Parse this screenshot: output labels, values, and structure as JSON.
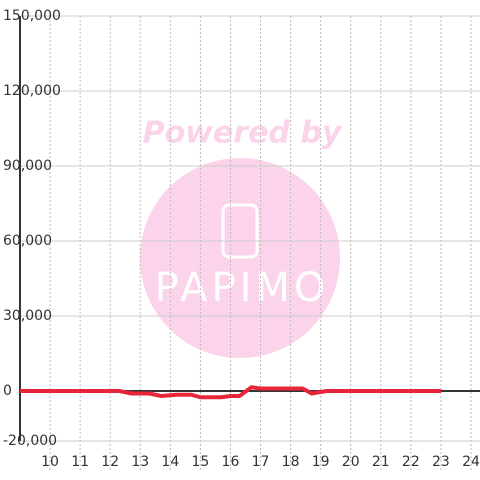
{
  "chart_data": {
    "type": "line",
    "x": [
      9,
      12.3,
      12.7,
      13.3,
      13.7,
      14.2,
      14.7,
      15,
      15.7,
      16,
      16.3,
      16.7,
      17,
      18,
      18.4,
      18.7,
      19.2,
      20,
      23
    ],
    "series": [
      {
        "color": "#e8253a",
        "values": [
          0,
          0,
          -1000,
          -1000,
          -2000,
          -1500,
          -1500,
          -2500,
          -2500,
          -2000,
          -2000,
          1500,
          1000,
          1000,
          1000,
          -1000,
          0,
          0,
          0
        ]
      }
    ],
    "xlim": [
      9,
      24.3
    ],
    "xticks": [
      10,
      11,
      12,
      13,
      14,
      15,
      16,
      17,
      18,
      19,
      20,
      21,
      22,
      23,
      24
    ],
    "ylim": [
      -20000,
      150000
    ],
    "yticks": [
      {
        "value": -20000,
        "label": "-20,000"
      },
      0,
      {
        "value": 30000,
        "label": "30,000"
      },
      {
        "value": 60000,
        "label": "60,000"
      },
      {
        "value": 90000,
        "label": "90,000"
      },
      {
        "value": 120000,
        "label": "120,000"
      },
      {
        "value": 150000,
        "label": "150,000"
      }
    ],
    "grid": true,
    "watermark": {
      "line1": "Powered by",
      "line2": "PAPIMO"
    }
  }
}
